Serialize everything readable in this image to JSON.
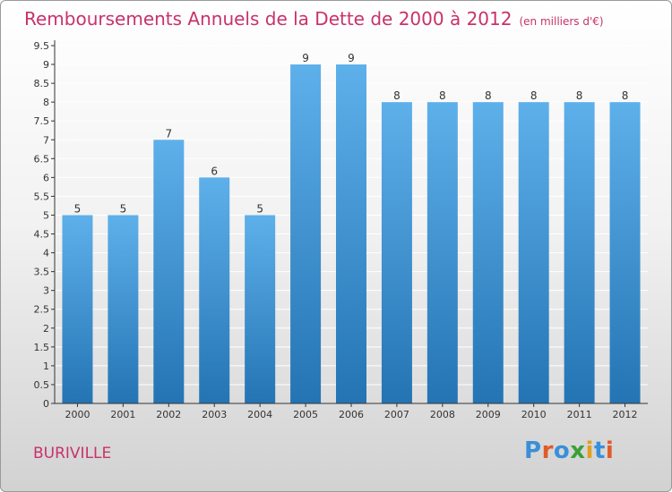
{
  "header": {
    "title": "Remboursements Annuels de la Dette de 2000 à 2012",
    "unit": "(en milliers d'€)"
  },
  "footer": {
    "commune": "BURIVILLE",
    "logo_text": "Proxiti",
    "logo_colors": [
      "#3a8fd9",
      "#e05a2a",
      "#3a8fd9",
      "#3aa03a",
      "#e0a020",
      "#3a8fd9",
      "#e05a2a"
    ]
  },
  "colors": {
    "title": "#c8326a",
    "bar_top": "#5eb0ea",
    "bar_bottom": "#2474b4",
    "grid": "#ffffff",
    "axis": "#333333"
  },
  "chart_data": {
    "type": "bar",
    "categories": [
      "2000",
      "2001",
      "2002",
      "2003",
      "2004",
      "2005",
      "2006",
      "2007",
      "2008",
      "2009",
      "2010",
      "2011",
      "2012"
    ],
    "values": [
      5,
      5,
      7,
      6,
      5,
      9,
      9,
      8,
      8,
      8,
      8,
      8,
      8
    ],
    "data_labels": [
      "5",
      "5",
      "7",
      "6",
      "5",
      "9",
      "9",
      "8",
      "8",
      "8",
      "8",
      "8",
      "8"
    ],
    "title": "Remboursements Annuels de la Dette de 2000 à 2012",
    "subtitle": "(en milliers d'€)",
    "xlabel": "",
    "ylabel": "",
    "ylim": [
      0,
      9.5
    ],
    "yticks": [
      "0",
      "0.5",
      "1",
      "1.5",
      "2",
      "2.5",
      "3",
      "3.5",
      "4",
      "4.5",
      "5",
      "5.5",
      "6",
      "6.5",
      "7",
      "7.5",
      "8",
      "8.5",
      "9",
      "9.5"
    ],
    "grid": true,
    "legend": "none"
  }
}
